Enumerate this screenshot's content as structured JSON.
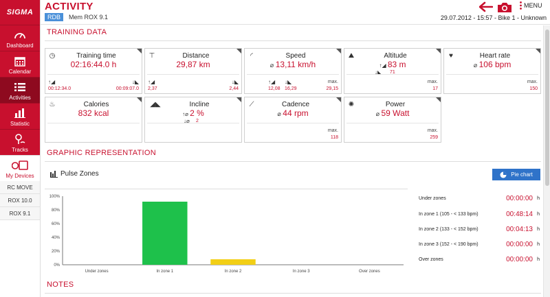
{
  "app": {
    "brand": "SIGMA"
  },
  "sidebar": {
    "items": [
      {
        "label": "Dashboard",
        "icon": "dashboard-gauge-icon"
      },
      {
        "label": "Calendar",
        "icon": "calendar-icon"
      },
      {
        "label": "Activities",
        "icon": "list-icon"
      },
      {
        "label": "Statistic",
        "icon": "bar-chart-icon"
      },
      {
        "label": "Tracks",
        "icon": "map-pin-icon"
      },
      {
        "label": "My Devices",
        "icon": "devices-icon"
      }
    ],
    "devices": [
      "RC MOVE",
      "ROX 10.0",
      "ROX 9.1"
    ]
  },
  "header": {
    "title": "ACTIVITY",
    "badge": "RDB",
    "device": "Mem ROX 9.1",
    "info": "29.07.2012  -  15:57  -  Bike 1  -  Unknown",
    "menu_label": "MENU"
  },
  "training": {
    "section_title": "TRAINING DATA",
    "time": {
      "title": "Training time",
      "value": "02:16:44.0 h",
      "up": "00:12:34.0",
      "down": "00:09:07.0"
    },
    "distance": {
      "title": "Distance",
      "value": "29,87 km",
      "up": "2,37",
      "down": "2,44"
    },
    "speed": {
      "title": "Speed",
      "value": "13,11 km/h",
      "up": "12,08",
      "down": "16,29",
      "max_label": "max.",
      "max": "29,15"
    },
    "altitude": {
      "title": "Altitude",
      "value": "83 m",
      "down": "71",
      "max_label": "max.",
      "max": "17"
    },
    "heart": {
      "title": "Heart rate",
      "value": "106 bpm",
      "max_label": "max.",
      "max": "150"
    },
    "calories": {
      "title": "Calories",
      "value": "832 kcal"
    },
    "incline": {
      "title": "Incline",
      "value": "2 %",
      "down": "2"
    },
    "cadence": {
      "title": "Cadence",
      "value": "44 rpm",
      "max_label": "max.",
      "max": "118"
    },
    "power": {
      "title": "Power",
      "value": "59 Watt",
      "max_label": "max.",
      "max": "259"
    }
  },
  "graphic": {
    "section_title": "GRAPHIC REPRESENTATION",
    "chart_title": "Pulse Zones",
    "pie_button": "Pie chart",
    "zones": [
      {
        "label": "Under zones",
        "time": "00:00:00",
        "unit": "h"
      },
      {
        "label": "In zone 1 (105 - < 133 bpm)",
        "time": "00:48:14",
        "unit": "h"
      },
      {
        "label": "In zone 2 (133 - < 152 bpm)",
        "time": "00:04:13",
        "unit": "h"
      },
      {
        "label": "In zone 3 (152 - < 190 bpm)",
        "time": "00:00:00",
        "unit": "h"
      },
      {
        "label": "Over zones",
        "time": "00:00:00",
        "unit": "h"
      }
    ]
  },
  "notes": {
    "section_title": "NOTES"
  },
  "colors": {
    "brand_red": "#c8102e",
    "button_blue": "#2f73c9",
    "zone1": "#1ec14b",
    "zone2": "#f2cf16"
  },
  "chart_data": {
    "type": "bar",
    "categories": [
      "Under zones",
      "In zone 1",
      "In zone 2",
      "In zone 3",
      "Over zones"
    ],
    "values": [
      0,
      92,
      8,
      0,
      0
    ],
    "colors": [
      "#1ec14b",
      "#1ec14b",
      "#f2cf16",
      "#999999",
      "#999999"
    ],
    "yticks": [
      "100%",
      "80%",
      "60%",
      "40%",
      "20%",
      "0%"
    ],
    "ylim": [
      0,
      100
    ],
    "grid": false,
    "xlabel": "",
    "ylabel": "",
    "title": ""
  }
}
